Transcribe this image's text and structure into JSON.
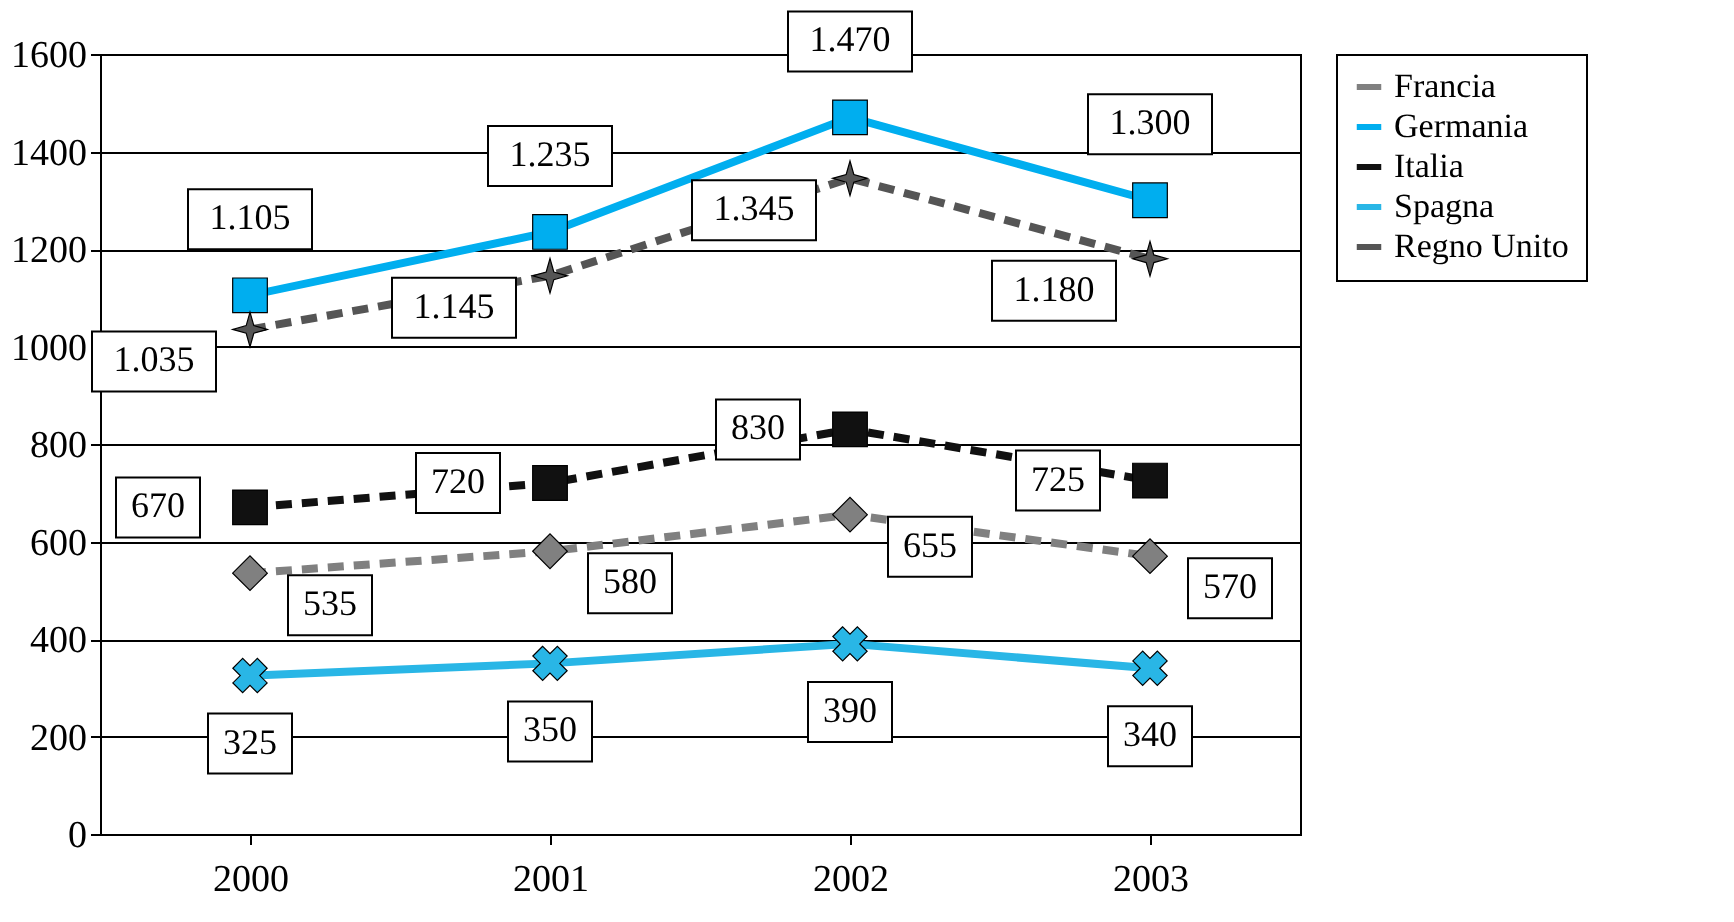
{
  "chart_data": {
    "type": "line",
    "categories": [
      "2000",
      "2001",
      "2002",
      "2003"
    ],
    "series": [
      {
        "name": "Francia",
        "color": "#808080",
        "marker": "diamond",
        "line_style": "dashed",
        "values": [
          535,
          580,
          655,
          570
        ],
        "value_labels": [
          "535",
          "580",
          "655",
          "570"
        ]
      },
      {
        "name": "Germania",
        "color": "#00aeef",
        "marker": "square",
        "line_style": "solid",
        "values": [
          1105,
          1235,
          1470,
          1300
        ],
        "value_labels": [
          "1.105",
          "1.235",
          "1.470",
          "1.300"
        ]
      },
      {
        "name": "Italia",
        "color": "#111111",
        "marker": "square",
        "line_style": "dashed",
        "values": [
          670,
          720,
          830,
          725
        ],
        "value_labels": [
          "670",
          "720",
          "830",
          "725"
        ]
      },
      {
        "name": "Spagna",
        "color": "#29b6e6",
        "marker": "cross",
        "line_style": "solid",
        "values": [
          325,
          350,
          390,
          340
        ],
        "value_labels": [
          "325",
          "350",
          "390",
          "340"
        ]
      },
      {
        "name": "Regno Unito",
        "color": "#555555",
        "marker": "star",
        "line_style": "dashed",
        "values": [
          1035,
          1145,
          1345,
          1180
        ],
        "value_labels": [
          "1.035",
          "1.145",
          "1.345",
          "1.180"
        ]
      }
    ],
    "ylim": [
      0,
      1600
    ],
    "yticks": [
      0,
      200,
      400,
      600,
      800,
      1000,
      1200,
      1400,
      1600
    ],
    "grid": "y",
    "legend": "right"
  }
}
